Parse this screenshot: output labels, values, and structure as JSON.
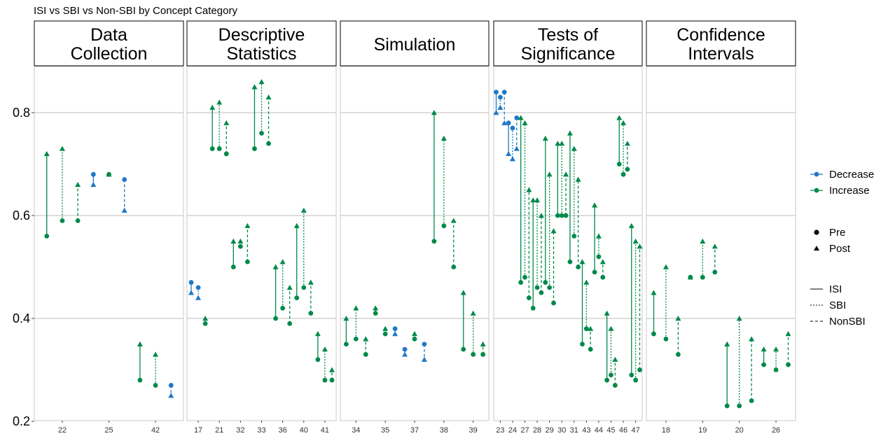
{
  "chart_data": {
    "type": "scatter",
    "title": "ISI vs SBI vs Non-SBI by Concept Category",
    "ylim": [
      0.2,
      0.9
    ],
    "y_ticks": [
      0.2,
      0.4,
      0.6,
      0.8
    ],
    "y_tick_labels": [
      "0.2",
      "0.4",
      "0.6",
      "0.8"
    ],
    "grid": "horizontal major lines",
    "colors": {
      "Decrease": "#1f78c8",
      "Increase": "#00894a"
    },
    "legend": {
      "position": "right",
      "direction": [
        "Decrease",
        "Increase"
      ],
      "time": [
        "Pre",
        "Post"
      ],
      "curriculum": [
        "ISI",
        "SBI",
        "NonSBI"
      ]
    },
    "panels": [
      {
        "label": [
          "Data",
          "Collection"
        ],
        "x_ticks": [
          {
            "pos": 2,
            "label": "22"
          },
          {
            "pos": 5,
            "label": "25"
          },
          {
            "pos": 8,
            "label": "42"
          }
        ],
        "xlim": [
          0.2,
          9.8
        ],
        "segments": [
          {
            "x": 1,
            "pre": 0.56,
            "post": 0.72,
            "curr": "ISI",
            "dir": "Increase"
          },
          {
            "x": 2,
            "pre": 0.59,
            "post": 0.73,
            "curr": "SBI",
            "dir": "Increase"
          },
          {
            "x": 3,
            "pre": 0.59,
            "post": 0.66,
            "curr": "NonSBI",
            "dir": "Increase"
          },
          {
            "x": 4,
            "pre": 0.68,
            "post": 0.66,
            "curr": "ISI",
            "dir": "Decrease"
          },
          {
            "x": 5,
            "pre": 0.68,
            "post": 0.68,
            "curr": "SBI",
            "dir": "Increase"
          },
          {
            "x": 6,
            "pre": 0.67,
            "post": 0.61,
            "curr": "NonSBI",
            "dir": "Decrease"
          },
          {
            "x": 7,
            "pre": 0.28,
            "post": 0.35,
            "curr": "ISI",
            "dir": "Increase"
          },
          {
            "x": 8,
            "pre": 0.27,
            "post": 0.33,
            "curr": "SBI",
            "dir": "Increase"
          },
          {
            "x": 9,
            "pre": 0.27,
            "post": 0.25,
            "curr": "NonSBI",
            "dir": "Decrease"
          }
        ]
      },
      {
        "label": [
          "Descriptive",
          "Statistics"
        ],
        "x_ticks": [
          {
            "pos": 2,
            "label": "17"
          },
          {
            "pos": 5,
            "label": "21"
          },
          {
            "pos": 8,
            "label": "32"
          },
          {
            "pos": 11,
            "label": "33"
          },
          {
            "pos": 14,
            "label": "36"
          },
          {
            "pos": 17,
            "label": "40"
          },
          {
            "pos": 20,
            "label": "41"
          }
        ],
        "xlim": [
          0.4,
          21.6
        ],
        "segments": [
          {
            "x": 1,
            "pre": 0.47,
            "post": 0.45,
            "curr": "ISI",
            "dir": "Decrease"
          },
          {
            "x": 2,
            "pre": 0.46,
            "post": 0.44,
            "curr": "SBI",
            "dir": "Decrease"
          },
          {
            "x": 3,
            "pre": 0.39,
            "post": 0.4,
            "curr": "NonSBI",
            "dir": "Increase"
          },
          {
            "x": 4,
            "pre": 0.73,
            "post": 0.81,
            "curr": "ISI",
            "dir": "Increase"
          },
          {
            "x": 5,
            "pre": 0.73,
            "post": 0.82,
            "curr": "SBI",
            "dir": "Increase"
          },
          {
            "x": 6,
            "pre": 0.72,
            "post": 0.78,
            "curr": "NonSBI",
            "dir": "Increase"
          },
          {
            "x": 7,
            "pre": 0.5,
            "post": 0.55,
            "curr": "ISI",
            "dir": "Increase"
          },
          {
            "x": 8,
            "pre": 0.54,
            "post": 0.55,
            "curr": "SBI",
            "dir": "Increase"
          },
          {
            "x": 9,
            "pre": 0.51,
            "post": 0.58,
            "curr": "NonSBI",
            "dir": "Increase"
          },
          {
            "x": 10,
            "pre": 0.73,
            "post": 0.85,
            "curr": "ISI",
            "dir": "Increase"
          },
          {
            "x": 11,
            "pre": 0.76,
            "post": 0.86,
            "curr": "SBI",
            "dir": "Increase"
          },
          {
            "x": 12,
            "pre": 0.74,
            "post": 0.83,
            "curr": "NonSBI",
            "dir": "Increase"
          },
          {
            "x": 13,
            "pre": 0.4,
            "post": 0.5,
            "curr": "ISI",
            "dir": "Increase"
          },
          {
            "x": 14,
            "pre": 0.42,
            "post": 0.51,
            "curr": "SBI",
            "dir": "Increase"
          },
          {
            "x": 15,
            "pre": 0.39,
            "post": 0.46,
            "curr": "NonSBI",
            "dir": "Increase"
          },
          {
            "x": 16,
            "pre": 0.44,
            "post": 0.58,
            "curr": "ISI",
            "dir": "Increase"
          },
          {
            "x": 17,
            "pre": 0.46,
            "post": 0.61,
            "curr": "SBI",
            "dir": "Increase"
          },
          {
            "x": 18,
            "pre": 0.41,
            "post": 0.47,
            "curr": "NonSBI",
            "dir": "Increase"
          },
          {
            "x": 19,
            "pre": 0.32,
            "post": 0.37,
            "curr": "ISI",
            "dir": "Increase"
          },
          {
            "x": 20,
            "pre": 0.28,
            "post": 0.34,
            "curr": "SBI",
            "dir": "Increase"
          },
          {
            "x": 21,
            "pre": 0.28,
            "post": 0.3,
            "curr": "NonSBI",
            "dir": "Increase"
          }
        ]
      },
      {
        "label": [
          "Simulation"
        ],
        "x_ticks": [
          {
            "pos": 2,
            "label": "34"
          },
          {
            "pos": 5,
            "label": "35"
          },
          {
            "pos": 8,
            "label": "37"
          },
          {
            "pos": 11,
            "label": "38"
          },
          {
            "pos": 14,
            "label": "39"
          }
        ],
        "xlim": [
          0.4,
          15.6
        ],
        "segments": [
          {
            "x": 1,
            "pre": 0.35,
            "post": 0.4,
            "curr": "ISI",
            "dir": "Increase"
          },
          {
            "x": 2,
            "pre": 0.36,
            "post": 0.42,
            "curr": "SBI",
            "dir": "Increase"
          },
          {
            "x": 3,
            "pre": 0.33,
            "post": 0.36,
            "curr": "NonSBI",
            "dir": "Increase"
          },
          {
            "x": 4,
            "pre": 0.41,
            "post": 0.42,
            "curr": "ISI",
            "dir": "Increase"
          },
          {
            "x": 5,
            "pre": 0.37,
            "post": 0.38,
            "curr": "SBI",
            "dir": "Increase"
          },
          {
            "x": 6,
            "pre": 0.38,
            "post": 0.37,
            "curr": "NonSBI",
            "dir": "Decrease"
          },
          {
            "x": 7,
            "pre": 0.34,
            "post": 0.33,
            "curr": "ISI",
            "dir": "Decrease"
          },
          {
            "x": 8,
            "pre": 0.36,
            "post": 0.37,
            "curr": "SBI",
            "dir": "Increase"
          },
          {
            "x": 9,
            "pre": 0.35,
            "post": 0.32,
            "curr": "NonSBI",
            "dir": "Decrease"
          },
          {
            "x": 10,
            "pre": 0.55,
            "post": 0.8,
            "curr": "ISI",
            "dir": "Increase"
          },
          {
            "x": 11,
            "pre": 0.58,
            "post": 0.75,
            "curr": "SBI",
            "dir": "Increase"
          },
          {
            "x": 12,
            "pre": 0.5,
            "post": 0.59,
            "curr": "NonSBI",
            "dir": "Increase"
          },
          {
            "x": 13,
            "pre": 0.34,
            "post": 0.45,
            "curr": "ISI",
            "dir": "Increase"
          },
          {
            "x": 14,
            "pre": 0.33,
            "post": 0.41,
            "curr": "SBI",
            "dir": "Increase"
          },
          {
            "x": 15,
            "pre": 0.33,
            "post": 0.35,
            "curr": "NonSBI",
            "dir": "Increase"
          }
        ]
      },
      {
        "label": [
          "Tests of",
          "Significance"
        ],
        "x_ticks": [
          {
            "pos": 2,
            "label": "23"
          },
          {
            "pos": 5,
            "label": "24"
          },
          {
            "pos": 8,
            "label": "27"
          },
          {
            "pos": 11,
            "label": "28"
          },
          {
            "pos": 14,
            "label": "29"
          },
          {
            "pos": 17,
            "label": "30"
          },
          {
            "pos": 20,
            "label": "31"
          },
          {
            "pos": 23,
            "label": "43"
          },
          {
            "pos": 26,
            "label": "44"
          },
          {
            "pos": 29,
            "label": "45"
          },
          {
            "pos": 32,
            "label": "46"
          },
          {
            "pos": 35,
            "label": "47"
          }
        ],
        "xlim": [
          0.4,
          36.6
        ],
        "segments": [
          {
            "x": 1,
            "pre": 0.84,
            "post": 0.8,
            "curr": "ISI",
            "dir": "Decrease"
          },
          {
            "x": 2,
            "pre": 0.83,
            "post": 0.81,
            "curr": "SBI",
            "dir": "Decrease"
          },
          {
            "x": 3,
            "pre": 0.84,
            "post": 0.78,
            "curr": "NonSBI",
            "dir": "Decrease"
          },
          {
            "x": 4,
            "pre": 0.78,
            "post": 0.72,
            "curr": "ISI",
            "dir": "Decrease"
          },
          {
            "x": 5,
            "pre": 0.77,
            "post": 0.71,
            "curr": "SBI",
            "dir": "Decrease"
          },
          {
            "x": 6,
            "pre": 0.79,
            "post": 0.73,
            "curr": "NonSBI",
            "dir": "Decrease"
          },
          {
            "x": 7,
            "pre": 0.47,
            "post": 0.79,
            "curr": "ISI",
            "dir": "Increase"
          },
          {
            "x": 8,
            "pre": 0.48,
            "post": 0.78,
            "curr": "SBI",
            "dir": "Increase"
          },
          {
            "x": 9,
            "pre": 0.44,
            "post": 0.65,
            "curr": "NonSBI",
            "dir": "Increase"
          },
          {
            "x": 10,
            "pre": 0.42,
            "post": 0.63,
            "curr": "ISI",
            "dir": "Increase"
          },
          {
            "x": 11,
            "pre": 0.46,
            "post": 0.63,
            "curr": "SBI",
            "dir": "Increase"
          },
          {
            "x": 12,
            "pre": 0.45,
            "post": 0.6,
            "curr": "NonSBI",
            "dir": "Increase"
          },
          {
            "x": 13,
            "pre": 0.47,
            "post": 0.75,
            "curr": "ISI",
            "dir": "Increase"
          },
          {
            "x": 14,
            "pre": 0.46,
            "post": 0.68,
            "curr": "SBI",
            "dir": "Increase"
          },
          {
            "x": 15,
            "pre": 0.43,
            "post": 0.57,
            "curr": "NonSBI",
            "dir": "Increase"
          },
          {
            "x": 16,
            "pre": 0.6,
            "post": 0.74,
            "curr": "ISI",
            "dir": "Increase"
          },
          {
            "x": 17,
            "pre": 0.6,
            "post": 0.74,
            "curr": "SBI",
            "dir": "Increase"
          },
          {
            "x": 18,
            "pre": 0.6,
            "post": 0.68,
            "curr": "NonSBI",
            "dir": "Increase"
          },
          {
            "x": 19,
            "pre": 0.51,
            "post": 0.76,
            "curr": "ISI",
            "dir": "Increase"
          },
          {
            "x": 20,
            "pre": 0.56,
            "post": 0.73,
            "curr": "SBI",
            "dir": "Increase"
          },
          {
            "x": 21,
            "pre": 0.5,
            "post": 0.67,
            "curr": "NonSBI",
            "dir": "Increase"
          },
          {
            "x": 22,
            "pre": 0.35,
            "post": 0.51,
            "curr": "ISI",
            "dir": "Increase"
          },
          {
            "x": 23,
            "pre": 0.38,
            "post": 0.47,
            "curr": "SBI",
            "dir": "Increase"
          },
          {
            "x": 24,
            "pre": 0.34,
            "post": 0.38,
            "curr": "NonSBI",
            "dir": "Increase"
          },
          {
            "x": 25,
            "pre": 0.49,
            "post": 0.62,
            "curr": "ISI",
            "dir": "Increase"
          },
          {
            "x": 26,
            "pre": 0.52,
            "post": 0.56,
            "curr": "SBI",
            "dir": "Increase"
          },
          {
            "x": 27,
            "pre": 0.48,
            "post": 0.51,
            "curr": "NonSBI",
            "dir": "Increase"
          },
          {
            "x": 28,
            "pre": 0.28,
            "post": 0.41,
            "curr": "ISI",
            "dir": "Increase"
          },
          {
            "x": 29,
            "pre": 0.29,
            "post": 0.38,
            "curr": "SBI",
            "dir": "Increase"
          },
          {
            "x": 30,
            "pre": 0.27,
            "post": 0.32,
            "curr": "NonSBI",
            "dir": "Increase"
          },
          {
            "x": 31,
            "pre": 0.7,
            "post": 0.79,
            "curr": "ISI",
            "dir": "Increase"
          },
          {
            "x": 32,
            "pre": 0.68,
            "post": 0.78,
            "curr": "SBI",
            "dir": "Increase"
          },
          {
            "x": 33,
            "pre": 0.69,
            "post": 0.74,
            "curr": "NonSBI",
            "dir": "Increase"
          },
          {
            "x": 34,
            "pre": 0.29,
            "post": 0.58,
            "curr": "ISI",
            "dir": "Increase"
          },
          {
            "x": 35,
            "pre": 0.28,
            "post": 0.55,
            "curr": "SBI",
            "dir": "Increase"
          },
          {
            "x": 36,
            "pre": 0.3,
            "post": 0.54,
            "curr": "NonSBI",
            "dir": "Increase"
          }
        ]
      },
      {
        "label": [
          "Confidence",
          "Intervals"
        ],
        "x_ticks": [
          {
            "pos": 2,
            "label": "18"
          },
          {
            "pos": 5,
            "label": "19"
          },
          {
            "pos": 8,
            "label": "20"
          },
          {
            "pos": 11,
            "label": "26"
          }
        ],
        "xlim": [
          0.4,
          12.6
        ],
        "segments": [
          {
            "x": 1,
            "pre": 0.37,
            "post": 0.45,
            "curr": "ISI",
            "dir": "Increase"
          },
          {
            "x": 2,
            "pre": 0.36,
            "post": 0.5,
            "curr": "SBI",
            "dir": "Increase"
          },
          {
            "x": 3,
            "pre": 0.33,
            "post": 0.4,
            "curr": "NonSBI",
            "dir": "Increase"
          },
          {
            "x": 4,
            "pre": 0.48,
            "post": 0.48,
            "curr": "ISI",
            "dir": "Increase"
          },
          {
            "x": 5,
            "pre": 0.48,
            "post": 0.55,
            "curr": "SBI",
            "dir": "Increase"
          },
          {
            "x": 6,
            "pre": 0.49,
            "post": 0.54,
            "curr": "NonSBI",
            "dir": "Increase"
          },
          {
            "x": 7,
            "pre": 0.23,
            "post": 0.35,
            "curr": "ISI",
            "dir": "Increase"
          },
          {
            "x": 8,
            "pre": 0.23,
            "post": 0.4,
            "curr": "SBI",
            "dir": "Increase"
          },
          {
            "x": 9,
            "pre": 0.24,
            "post": 0.36,
            "curr": "NonSBI",
            "dir": "Increase"
          },
          {
            "x": 10,
            "pre": 0.31,
            "post": 0.34,
            "curr": "ISI",
            "dir": "Increase"
          },
          {
            "x": 11,
            "pre": 0.3,
            "post": 0.34,
            "curr": "SBI",
            "dir": "Increase"
          },
          {
            "x": 12,
            "pre": 0.31,
            "post": 0.37,
            "curr": "NonSBI",
            "dir": "Increase"
          }
        ]
      }
    ]
  }
}
